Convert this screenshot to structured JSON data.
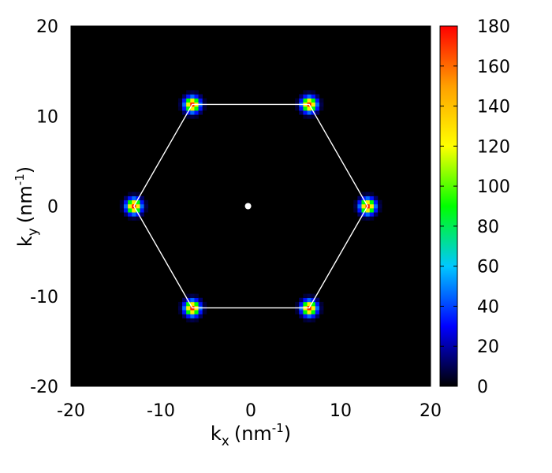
{
  "chart_data": {
    "type": "heatmap",
    "title": "",
    "xlabel": {
      "base": "k",
      "sub": "x",
      "unit": "(nm",
      "sup": "-1",
      "close": ")"
    },
    "ylabel": {
      "base": "k",
      "sub": "y",
      "unit": "(nm",
      "sup": "-1",
      "close": ")"
    },
    "xlim": [
      -20,
      20
    ],
    "ylim": [
      -20,
      20
    ],
    "xticks": [
      -20,
      -10,
      0,
      10,
      20
    ],
    "yticks": [
      -20,
      -10,
      0,
      10,
      20
    ],
    "colorbar": {
      "range": [
        0,
        180
      ],
      "ticks": [
        0,
        20,
        40,
        60,
        80,
        100,
        120,
        140,
        160,
        180
      ],
      "colormap": [
        "#000000",
        "#0000ff",
        "#00c8ff",
        "#00ff00",
        "#ffff00",
        "#ffa000",
        "#ff0000"
      ]
    },
    "background_color": "#000000",
    "peaks": [
      {
        "x": 13.0,
        "y": 0.0,
        "value": 175
      },
      {
        "x": 6.5,
        "y": 11.3,
        "value": 175
      },
      {
        "x": -6.5,
        "y": 11.3,
        "value": 175
      },
      {
        "x": -13.0,
        "y": 0.0,
        "value": 175
      },
      {
        "x": -6.5,
        "y": -11.3,
        "value": 175
      },
      {
        "x": 6.5,
        "y": -11.3,
        "value": 175
      }
    ],
    "center_point": {
      "x": -0.3,
      "y": 0.0
    },
    "hexagon_color": "#ffffff",
    "grid": false
  }
}
